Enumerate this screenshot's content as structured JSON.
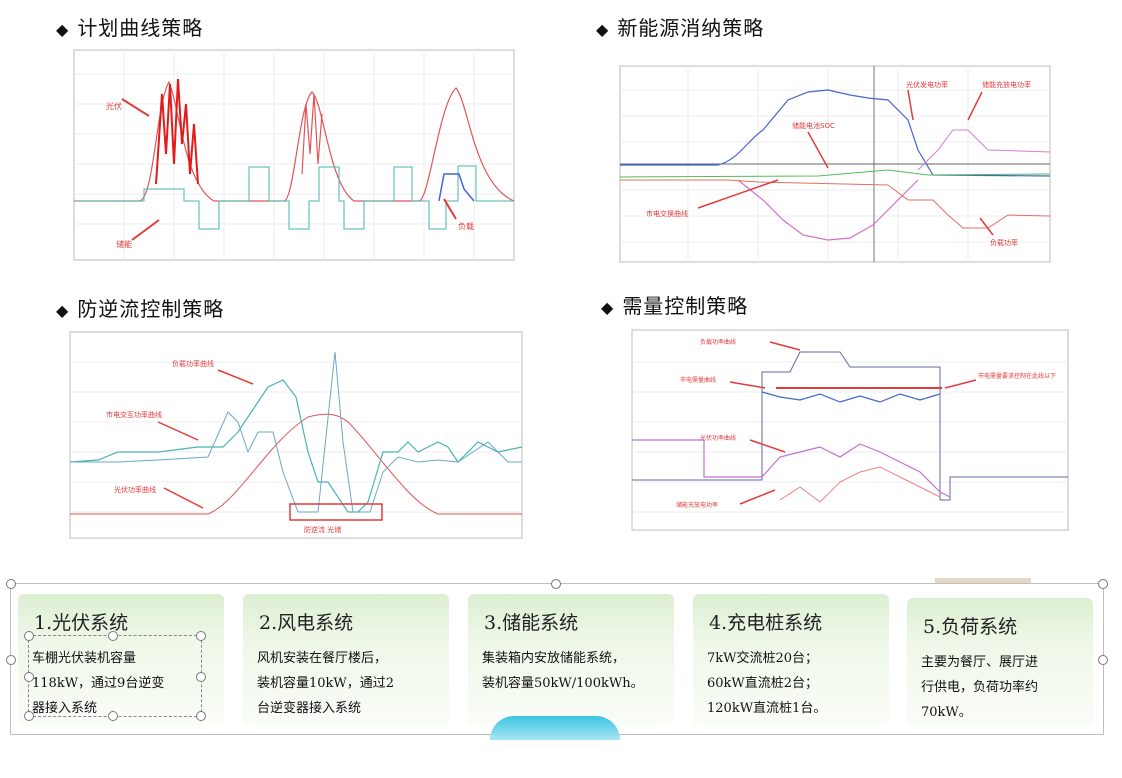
{
  "sections": {
    "plan_curve": "计划曲线策略",
    "new_energy": "新能源消纳策略",
    "anti_reverse": "防逆流控制策略",
    "demand": "需量控制策略"
  },
  "diamond": "◆",
  "charts": {
    "plan_curve": {
      "labels": [
        "光伏",
        "储能",
        "负载"
      ]
    },
    "new_energy": {
      "labels": [
        "光伏发电功率",
        "储能电池SOC",
        "储能充放电功率",
        "市电交换曲线",
        "负载功率"
      ]
    },
    "anti_reverse": {
      "labels": [
        "负载功率曲线",
        "市电交互功率曲线",
        "光伏功率曲线",
        "防逆流    光储"
      ]
    },
    "demand": {
      "labels": [
        "负载功率曲线",
        "市电需量曲线",
        "光伏功率曲线",
        "储能充放电功率",
        "市电需量要求控制在此线以下"
      ]
    }
  },
  "cards": [
    {
      "title": "1.光伏系统",
      "lines": [
        "车棚光伏装机容量",
        "118kW，通过9台逆变",
        "器接入系统"
      ]
    },
    {
      "title": "2.风电系统",
      "lines": [
        "风机安装在餐厅楼后，",
        "装机容量10kW，通过2",
        "台逆变器接入系统"
      ]
    },
    {
      "title": "3.储能系统",
      "lines": [
        "集装箱内安放储能系统，",
        "装机容量50kW/100kWh。"
      ]
    },
    {
      "title": "4.充电桩系统",
      "lines": [
        "7kW交流桩20台；",
        "60kW直流桩2台；",
        "120kW直流桩1台。"
      ]
    },
    {
      "title": "5.负荷系统",
      "lines": [
        "主要为餐厅、展厅进",
        "行供电，负荷功率约",
        "70kW。"
      ]
    }
  ],
  "colors": {
    "red": "#e23b3b",
    "blue": "#4466cc",
    "teal": "#4ab3b3",
    "pink": "#e060e0",
    "green": "#55bb55",
    "card_green": "#dcefd2"
  }
}
